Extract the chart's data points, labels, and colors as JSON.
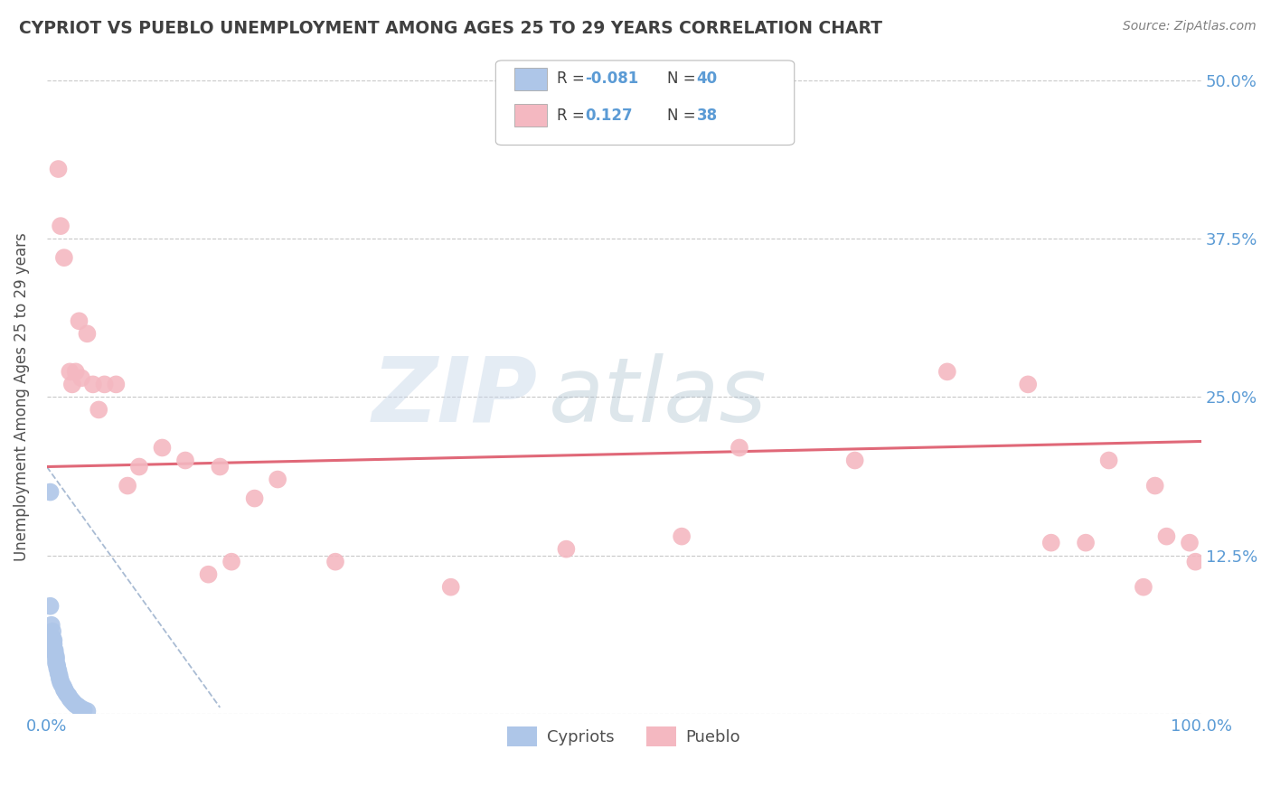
{
  "title": "CYPRIOT VS PUEBLO UNEMPLOYMENT AMONG AGES 25 TO 29 YEARS CORRELATION CHART",
  "source": "Source: ZipAtlas.com",
  "ylabel": "Unemployment Among Ages 25 to 29 years",
  "xlim": [
    0.0,
    1.0
  ],
  "ylim": [
    0.0,
    0.5
  ],
  "x_ticks": [
    0.0,
    1.0
  ],
  "x_tick_labels": [
    "0.0%",
    "100.0%"
  ],
  "y_ticks": [
    0.0,
    0.125,
    0.25,
    0.375,
    0.5
  ],
  "y_tick_labels_right": [
    "",
    "12.5%",
    "25.0%",
    "37.5%",
    "50.0%"
  ],
  "legend_items": [
    {
      "color": "#aec6e8",
      "R": "-0.081",
      "N": "40"
    },
    {
      "color": "#f4b8c1",
      "R": "0.127",
      "N": "38"
    }
  ],
  "legend_labels": [
    "Cypriots",
    "Pueblo"
  ],
  "cypriot_color": "#aec6e8",
  "pueblo_color": "#f4b8c1",
  "cypriot_line_color": "#9ab0cc",
  "pueblo_line_color": "#e06878",
  "background_color": "#ffffff",
  "grid_color": "#c8c8c8",
  "title_color": "#404040",
  "axis_label_color": "#505050",
  "tick_label_color": "#5b9bd5",
  "source_color": "#808080",
  "watermark_zip": "ZIP",
  "watermark_atlas": "atlas",
  "cypriot_x": [
    0.003,
    0.003,
    0.004,
    0.005,
    0.005,
    0.006,
    0.006,
    0.006,
    0.007,
    0.007,
    0.008,
    0.008,
    0.008,
    0.009,
    0.009,
    0.01,
    0.01,
    0.011,
    0.011,
    0.012,
    0.012,
    0.013,
    0.014,
    0.015,
    0.015,
    0.016,
    0.017,
    0.018,
    0.019,
    0.02,
    0.021,
    0.022,
    0.023,
    0.024,
    0.025,
    0.027,
    0.028,
    0.03,
    0.032,
    0.035
  ],
  "cypriot_y": [
    0.175,
    0.085,
    0.07,
    0.065,
    0.06,
    0.058,
    0.055,
    0.052,
    0.05,
    0.048,
    0.045,
    0.043,
    0.04,
    0.038,
    0.036,
    0.034,
    0.032,
    0.03,
    0.028,
    0.026,
    0.025,
    0.023,
    0.022,
    0.02,
    0.019,
    0.018,
    0.016,
    0.015,
    0.014,
    0.012,
    0.011,
    0.01,
    0.009,
    0.008,
    0.007,
    0.006,
    0.005,
    0.004,
    0.003,
    0.002
  ],
  "pueblo_x": [
    0.01,
    0.012,
    0.015,
    0.02,
    0.022,
    0.025,
    0.028,
    0.03,
    0.035,
    0.04,
    0.045,
    0.05,
    0.06,
    0.07,
    0.08,
    0.1,
    0.12,
    0.14,
    0.15,
    0.16,
    0.18,
    0.2,
    0.25,
    0.35,
    0.45,
    0.55,
    0.6,
    0.7,
    0.78,
    0.85,
    0.87,
    0.9,
    0.92,
    0.95,
    0.96,
    0.97,
    0.99,
    0.995
  ],
  "pueblo_y": [
    0.43,
    0.385,
    0.36,
    0.27,
    0.26,
    0.27,
    0.31,
    0.265,
    0.3,
    0.26,
    0.24,
    0.26,
    0.26,
    0.18,
    0.195,
    0.21,
    0.2,
    0.11,
    0.195,
    0.12,
    0.17,
    0.185,
    0.12,
    0.1,
    0.13,
    0.14,
    0.21,
    0.2,
    0.27,
    0.26,
    0.135,
    0.135,
    0.2,
    0.1,
    0.18,
    0.14,
    0.135,
    0.12
  ],
  "pueblo_trend_x0": 0.0,
  "pueblo_trend_y0": 0.195,
  "pueblo_trend_x1": 1.0,
  "pueblo_trend_y1": 0.215,
  "cypriot_trend_x0": 0.0,
  "cypriot_trend_y0": 0.195,
  "cypriot_trend_x1": 0.15,
  "cypriot_trend_y1": 0.005
}
